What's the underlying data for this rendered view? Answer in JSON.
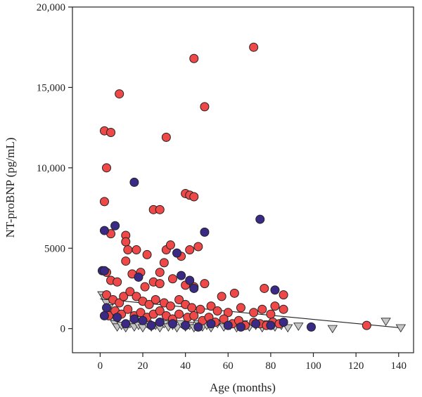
{
  "chart_data": {
    "type": "scatter",
    "title": "",
    "xlabel": "Age (months)",
    "ylabel": "NT-proBNP (pg/mL)",
    "xlim": [
      -13,
      147
    ],
    "ylim": [
      -1500,
      20000
    ],
    "xticks": [
      0,
      20,
      40,
      60,
      80,
      100,
      120,
      140
    ],
    "yticks": [
      0,
      5000,
      10000,
      15000,
      20000
    ],
    "xtick_labels": [
      "0",
      "20",
      "40",
      "60",
      "80",
      "100",
      "120",
      "140"
    ],
    "ytick_labels": [
      "0",
      "5000",
      "10,000",
      "15,000",
      "20,000"
    ],
    "grid": false,
    "colors": {
      "red": "#ef4848",
      "navy": "#3b2a85",
      "gray": "#c6c6c6",
      "outline": "#222222"
    },
    "trendline": {
      "x": [
        0,
        141
      ],
      "y": [
        1850,
        50
      ]
    },
    "series": [
      {
        "marker": "circle",
        "color": "#ef4848",
        "points": [
          [
            44,
            16800
          ],
          [
            72,
            17500
          ],
          [
            9,
            14600
          ],
          [
            49,
            13800
          ],
          [
            2,
            12300
          ],
          [
            5,
            12200
          ],
          [
            31,
            11900
          ],
          [
            3,
            10000
          ],
          [
            2,
            7900
          ],
          [
            40,
            8400
          ],
          [
            42,
            8300
          ],
          [
            44,
            8200
          ],
          [
            25,
            7400
          ],
          [
            28,
            7400
          ],
          [
            5,
            5900
          ],
          [
            12,
            5800
          ],
          [
            12,
            5400
          ],
          [
            13,
            4900
          ],
          [
            17,
            4900
          ],
          [
            12,
            4200
          ],
          [
            22,
            4600
          ],
          [
            31,
            4900
          ],
          [
            33,
            5200
          ],
          [
            38,
            4500
          ],
          [
            42,
            4900
          ],
          [
            46,
            5100
          ],
          [
            3,
            3500
          ],
          [
            5,
            3000
          ],
          [
            8,
            2900
          ],
          [
            15,
            3400
          ],
          [
            19,
            3500
          ],
          [
            21,
            2600
          ],
          [
            25,
            2900
          ],
          [
            28,
            2800
          ],
          [
            28,
            3500
          ],
          [
            30,
            4100
          ],
          [
            34,
            3100
          ],
          [
            40,
            2700
          ],
          [
            44,
            2600
          ],
          [
            49,
            2800
          ],
          [
            57,
            2000
          ],
          [
            63,
            2200
          ],
          [
            77,
            2500
          ],
          [
            86,
            2100
          ],
          [
            3,
            2100
          ],
          [
            6,
            1800
          ],
          [
            9,
            1600
          ],
          [
            11,
            2000
          ],
          [
            14,
            2300
          ],
          [
            17,
            2000
          ],
          [
            20,
            1700
          ],
          [
            23,
            1500
          ],
          [
            26,
            1800
          ],
          [
            30,
            1600
          ],
          [
            33,
            1400
          ],
          [
            37,
            1800
          ],
          [
            40,
            1500
          ],
          [
            43,
            1300
          ],
          [
            47,
            1200
          ],
          [
            52,
            1400
          ],
          [
            55,
            1100
          ],
          [
            60,
            1000
          ],
          [
            66,
            1300
          ],
          [
            72,
            1000
          ],
          [
            76,
            1200
          ],
          [
            80,
            900
          ],
          [
            82,
            1400
          ],
          [
            86,
            1200
          ],
          [
            4,
            800
          ],
          [
            7,
            1100
          ],
          [
            10,
            900
          ],
          [
            13,
            1200
          ],
          [
            16,
            800
          ],
          [
            19,
            1000
          ],
          [
            22,
            700
          ],
          [
            25,
            900
          ],
          [
            28,
            1100
          ],
          [
            31,
            800
          ],
          [
            34,
            600
          ],
          [
            37,
            900
          ],
          [
            41,
            700
          ],
          [
            44,
            800
          ],
          [
            48,
            500
          ],
          [
            51,
            700
          ],
          [
            54,
            400
          ],
          [
            58,
            600
          ],
          [
            62,
            300
          ],
          [
            65,
            500
          ],
          [
            68,
            200
          ],
          [
            72,
            400
          ],
          [
            75,
            300
          ],
          [
            78,
            200
          ],
          [
            81,
            400
          ],
          [
            84,
            300
          ],
          [
            125,
            200
          ]
        ]
      },
      {
        "marker": "circle",
        "color": "#3b2a85",
        "points": [
          [
            16,
            9100
          ],
          [
            75,
            6800
          ],
          [
            7,
            6400
          ],
          [
            49,
            6000
          ],
          [
            2,
            6100
          ],
          [
            1,
            3600
          ],
          [
            2,
            3600
          ],
          [
            36,
            4700
          ],
          [
            38,
            3300
          ],
          [
            18,
            3200
          ],
          [
            42,
            3000
          ],
          [
            44,
            2500
          ],
          [
            82,
            2400
          ],
          [
            2,
            800
          ],
          [
            3,
            1300
          ],
          [
            8,
            700
          ],
          [
            12,
            300
          ],
          [
            16,
            600
          ],
          [
            20,
            500
          ],
          [
            24,
            200
          ],
          [
            28,
            400
          ],
          [
            34,
            300
          ],
          [
            40,
            200
          ],
          [
            46,
            100
          ],
          [
            52,
            300
          ],
          [
            60,
            200
          ],
          [
            66,
            100
          ],
          [
            73,
            300
          ],
          [
            80,
            200
          ],
          [
            86,
            400
          ],
          [
            99,
            100
          ]
        ]
      },
      {
        "marker": "triangle",
        "color": "#c6c6c6",
        "points": [
          [
            1,
            2100
          ],
          [
            2,
            1900
          ],
          [
            3,
            1600
          ],
          [
            4,
            1300
          ],
          [
            5,
            900
          ],
          [
            6,
            600
          ],
          [
            7,
            300
          ],
          [
            8,
            100
          ],
          [
            10,
            200
          ],
          [
            12,
            50
          ],
          [
            14,
            300
          ],
          [
            16,
            100
          ],
          [
            18,
            200
          ],
          [
            20,
            50
          ],
          [
            22,
            300
          ],
          [
            24,
            100
          ],
          [
            26,
            200
          ],
          [
            28,
            50
          ],
          [
            30,
            300
          ],
          [
            32,
            100
          ],
          [
            34,
            200
          ],
          [
            36,
            50
          ],
          [
            38,
            300
          ],
          [
            40,
            100
          ],
          [
            42,
            200
          ],
          [
            44,
            50
          ],
          [
            46,
            300
          ],
          [
            48,
            100
          ],
          [
            50,
            200
          ],
          [
            52,
            50
          ],
          [
            55,
            300
          ],
          [
            58,
            100
          ],
          [
            61,
            200
          ],
          [
            64,
            50
          ],
          [
            67,
            300
          ],
          [
            70,
            100
          ],
          [
            73,
            200
          ],
          [
            76,
            50
          ],
          [
            79,
            300
          ],
          [
            82,
            100
          ],
          [
            85,
            200
          ],
          [
            88,
            50
          ],
          [
            93,
            150
          ],
          [
            109,
            0
          ],
          [
            134,
            450
          ],
          [
            141,
            50
          ]
        ]
      }
    ]
  }
}
